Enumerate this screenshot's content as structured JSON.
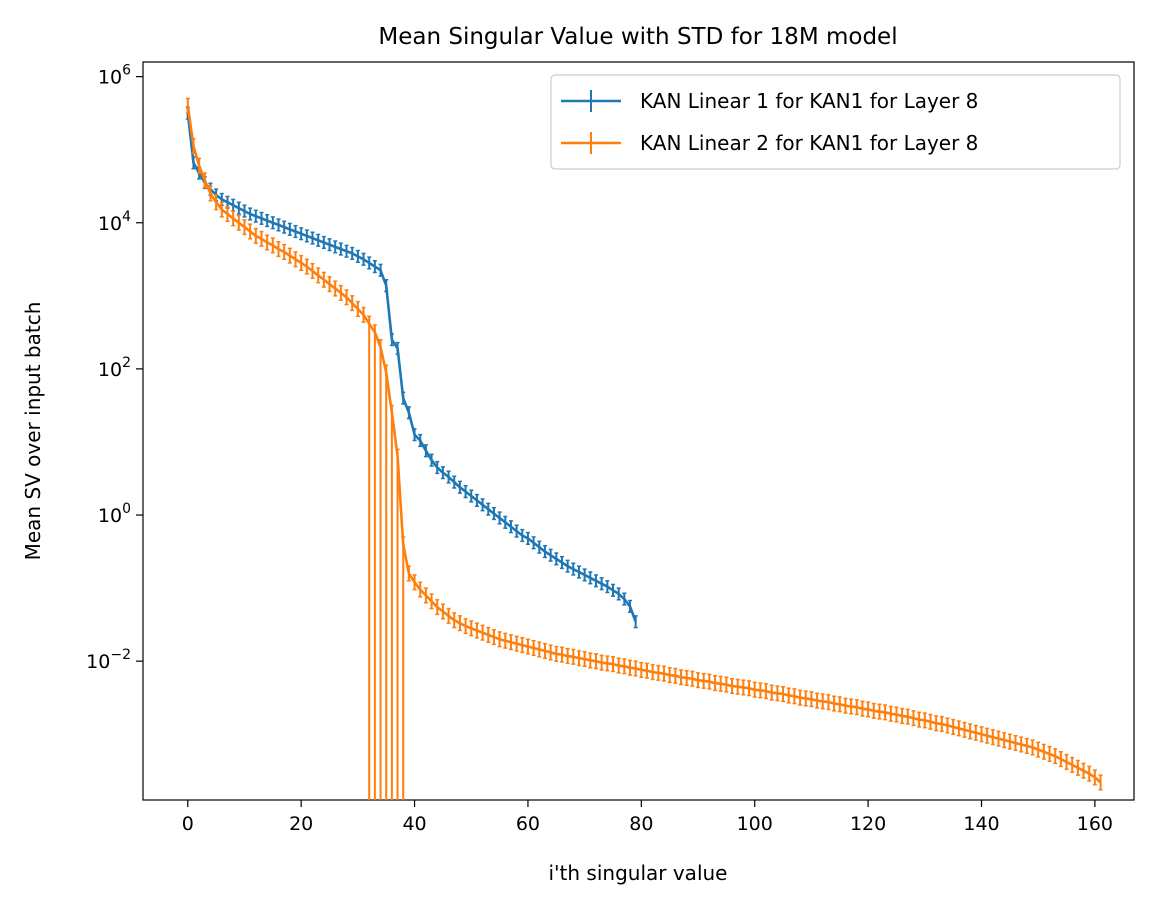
{
  "chart_data": {
    "type": "line",
    "title": "Mean Singular Value with STD for 18M model",
    "xlabel": "i'th singular value",
    "ylabel": "Mean SV over input batch",
    "xlim": [
      -7.9,
      166.9
    ],
    "ylim_log10": [
      -3.9,
      6.2
    ],
    "y_scale": "log",
    "grid": false,
    "legend_position": "top-right",
    "x_ticks": [
      0,
      20,
      40,
      60,
      80,
      100,
      120,
      140,
      160
    ],
    "y_ticks": [
      {
        "base": "10",
        "exp": "6",
        "log10": 6
      },
      {
        "base": "10",
        "exp": "4",
        "log10": 4
      },
      {
        "base": "10",
        "exp": "2",
        "log10": 2
      },
      {
        "base": "10",
        "exp": "0",
        "log10": 0
      },
      {
        "base": "10",
        "exp": "−2",
        "log10": -2
      }
    ],
    "series": [
      {
        "name": "KAN Linear 1 for KAN1 for Layer 8",
        "color": "#1f77b4",
        "x_start": 0,
        "error_band_log10": 0.08,
        "log10_values": [
          5.5,
          4.82,
          4.68,
          4.55,
          4.46,
          4.38,
          4.32,
          4.28,
          4.24,
          4.2,
          4.16,
          4.12,
          4.09,
          4.06,
          4.03,
          4.0,
          3.97,
          3.94,
          3.91,
          3.88,
          3.85,
          3.82,
          3.79,
          3.76,
          3.73,
          3.7,
          3.67,
          3.64,
          3.61,
          3.58,
          3.54,
          3.5,
          3.45,
          3.4,
          3.35,
          3.14,
          2.4,
          2.28,
          1.6,
          1.4,
          1.1,
          1.02,
          0.88,
          0.75,
          0.65,
          0.58,
          0.52,
          0.45,
          0.38,
          0.32,
          0.26,
          0.2,
          0.14,
          0.08,
          0.02,
          -0.04,
          -0.1,
          -0.16,
          -0.22,
          -0.28,
          -0.32,
          -0.38,
          -0.44,
          -0.5,
          -0.55,
          -0.6,
          -0.65,
          -0.7,
          -0.74,
          -0.78,
          -0.82,
          -0.86,
          -0.9,
          -0.94,
          -0.98,
          -1.03,
          -1.08,
          -1.15,
          -1.25,
          -1.46
        ]
      },
      {
        "name": "KAN Linear 2 for KAN1 for Layer 8",
        "color": "#ff7f0e",
        "x_start": 0,
        "error_band_log10": 0.1,
        "log10_values": [
          5.6,
          5.05,
          4.78,
          4.58,
          4.4,
          4.28,
          4.18,
          4.12,
          4.06,
          4.0,
          3.94,
          3.88,
          3.82,
          3.78,
          3.73,
          3.69,
          3.64,
          3.6,
          3.55,
          3.5,
          3.45,
          3.4,
          3.34,
          3.28,
          3.22,
          3.16,
          3.1,
          3.04,
          2.98,
          2.9,
          2.82,
          2.74,
          2.62,
          2.5,
          2.3,
          1.95,
          1.4,
          0.8,
          -0.4,
          -0.8,
          -0.92,
          -1.02,
          -1.1,
          -1.18,
          -1.26,
          -1.32,
          -1.38,
          -1.44,
          -1.48,
          -1.52,
          -1.55,
          -1.58,
          -1.61,
          -1.64,
          -1.67,
          -1.7,
          -1.72,
          -1.74,
          -1.76,
          -1.78,
          -1.8,
          -1.82,
          -1.84,
          -1.86,
          -1.88,
          -1.9,
          -1.91,
          -1.93,
          -1.94,
          -1.96,
          -1.97,
          -1.99,
          -2.0,
          -2.02,
          -2.03,
          -2.04,
          -2.06,
          -2.07,
          -2.09,
          -2.1,
          -2.12,
          -2.13,
          -2.15,
          -2.16,
          -2.17,
          -2.19,
          -2.2,
          -2.22,
          -2.23,
          -2.24,
          -2.26,
          -2.27,
          -2.28,
          -2.3,
          -2.31,
          -2.32,
          -2.34,
          -2.35,
          -2.36,
          -2.37,
          -2.39,
          -2.4,
          -2.41,
          -2.43,
          -2.44,
          -2.45,
          -2.47,
          -2.48,
          -2.5,
          -2.51,
          -2.52,
          -2.54,
          -2.55,
          -2.56,
          -2.58,
          -2.59,
          -2.61,
          -2.62,
          -2.63,
          -2.65,
          -2.66,
          -2.68,
          -2.69,
          -2.7,
          -2.72,
          -2.73,
          -2.75,
          -2.76,
          -2.78,
          -2.8,
          -2.81,
          -2.83,
          -2.85,
          -2.86,
          -2.88,
          -2.9,
          -2.92,
          -2.94,
          -2.96,
          -2.98,
          -3.0,
          -3.02,
          -3.04,
          -3.06,
          -3.08,
          -3.1,
          -3.12,
          -3.14,
          -3.16,
          -3.18,
          -3.21,
          -3.24,
          -3.27,
          -3.3,
          -3.34,
          -3.38,
          -3.42,
          -3.46,
          -3.5,
          -3.54,
          -3.59,
          -3.66
        ]
      }
    ]
  }
}
